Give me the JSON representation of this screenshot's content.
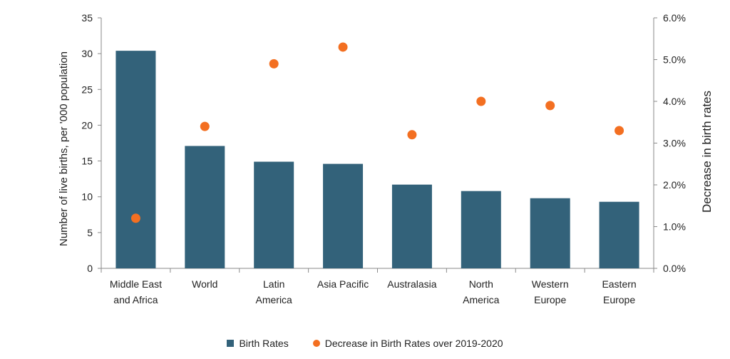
{
  "chart_data": {
    "type": "bar",
    "categories": [
      [
        "Middle East",
        "and Africa"
      ],
      [
        "World"
      ],
      [
        "Latin",
        "America"
      ],
      [
        "Asia Pacific"
      ],
      [
        "Australasia"
      ],
      [
        "North",
        "America"
      ],
      [
        "Western",
        "Europe"
      ],
      [
        "Eastern",
        "Europe"
      ]
    ],
    "series": [
      {
        "name": "Birth Rates",
        "type": "bar",
        "axis": "left",
        "color": "#33627a",
        "values": [
          30.4,
          17.1,
          14.9,
          14.6,
          11.7,
          10.8,
          9.8,
          9.3
        ]
      },
      {
        "name": "Decrease in Birth Rates over 2019-2020",
        "type": "scatter",
        "axis": "right",
        "color": "#f36f21",
        "values": [
          0.012,
          0.034,
          0.049,
          0.053,
          0.032,
          0.04,
          0.039,
          0.033
        ]
      }
    ],
    "ylabel": "Number of live births, per '000 population",
    "y2label": "Decrease in birth rates",
    "ylim": [
      0,
      35
    ],
    "yticks": [
      "0",
      "5",
      "10",
      "15",
      "20",
      "25",
      "30",
      "35"
    ],
    "y2lim": [
      0,
      0.06
    ],
    "y2ticks": [
      "0.0%",
      "1.0%",
      "2.0%",
      "3.0%",
      "4.0%",
      "5.0%",
      "6.0%"
    ],
    "grid": false,
    "legend_position": "bottom"
  }
}
